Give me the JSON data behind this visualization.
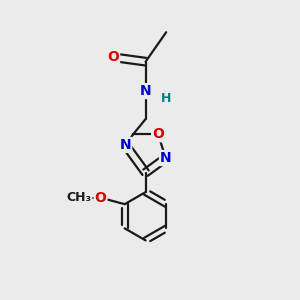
{
  "background_color": "#ebebeb",
  "bond_color": "#1a1a1a",
  "bond_width": 1.6,
  "atom_colors": {
    "O": "#dd0000",
    "N": "#0000cc",
    "H": "#008080",
    "C": "#1a1a1a"
  },
  "font_size_atom": 10,
  "font_size_h": 9,
  "font_size_me": 9
}
